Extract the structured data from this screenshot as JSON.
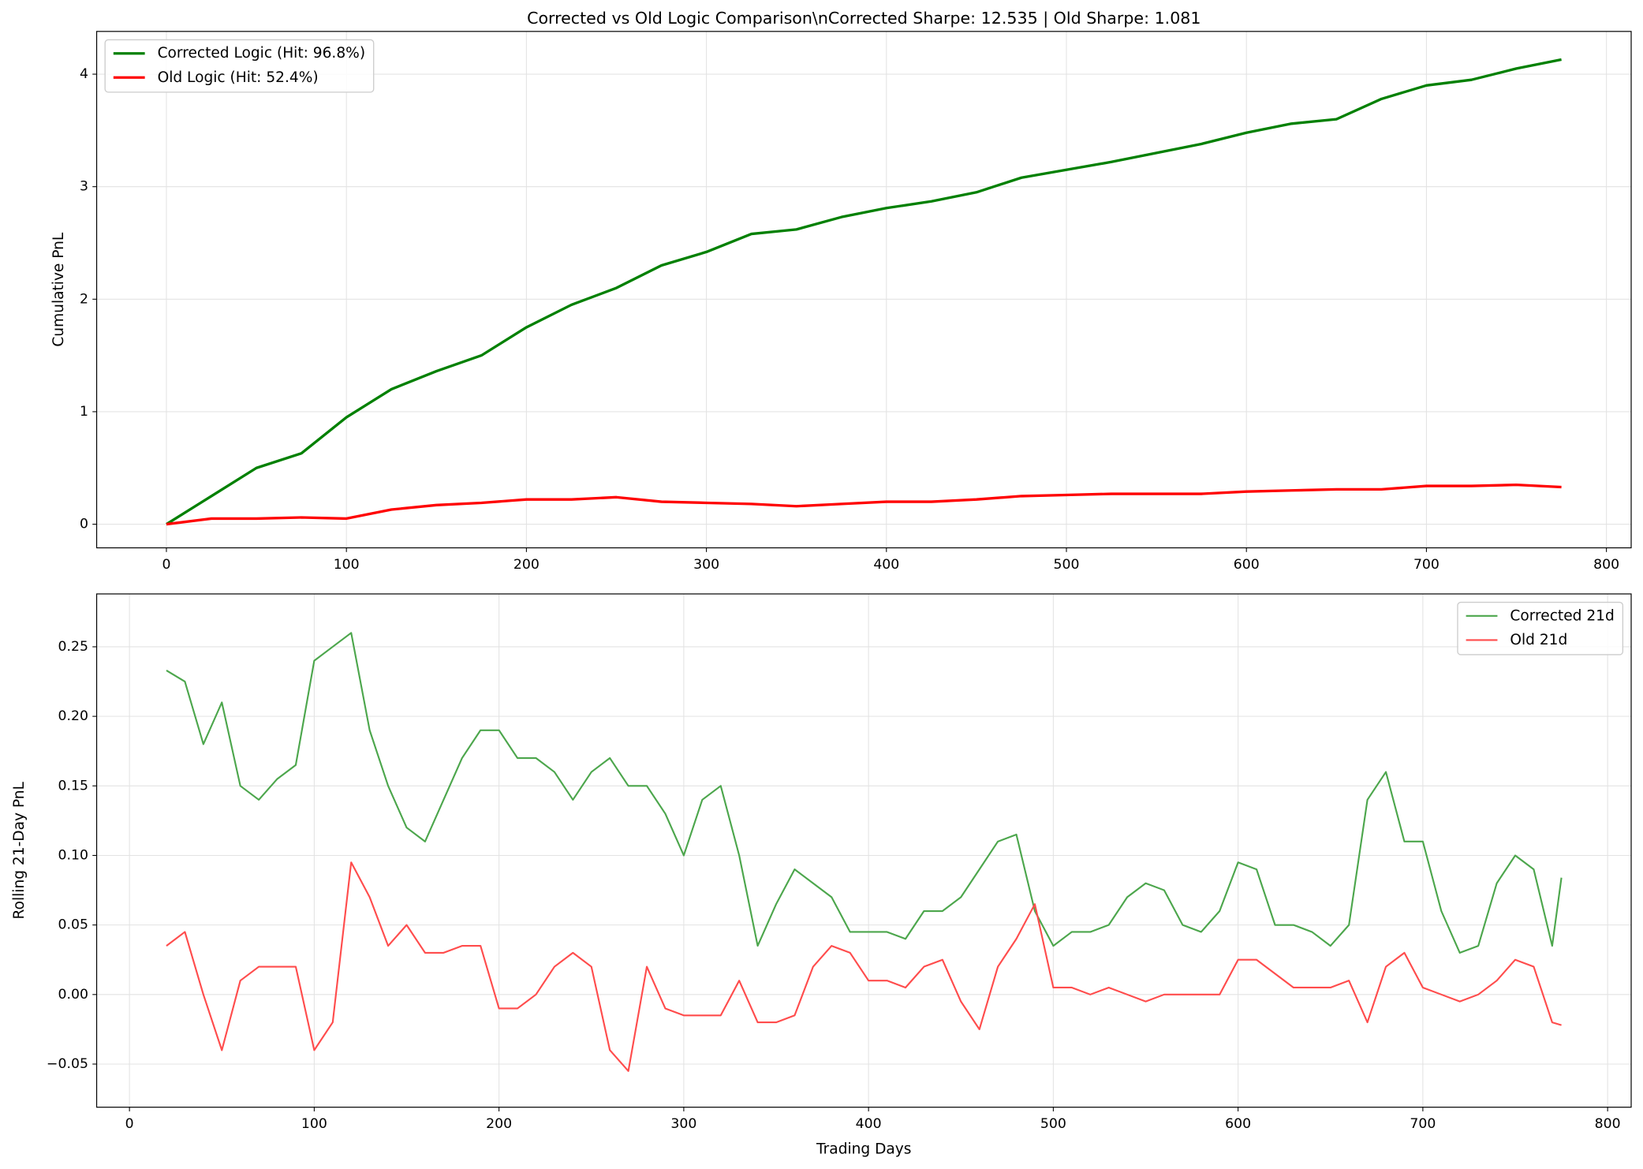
{
  "chart_data": [
    {
      "type": "line",
      "title": "Corrected vs Old Logic Comparison\\nCorrected Sharpe: 12.535 | Old Sharpe: 1.081",
      "ylabel": "Cumulative PnL",
      "grid": true,
      "legend": "upper left",
      "xlim": [
        -38.75,
        813.75
      ],
      "ylim": [
        -0.21,
        4.38
      ],
      "xticks": [
        0,
        100,
        200,
        300,
        400,
        500,
        600,
        700,
        800
      ],
      "yticks": [
        0,
        1,
        2,
        3,
        4
      ],
      "x": [
        0,
        25,
        50,
        75,
        100,
        125,
        150,
        175,
        200,
        225,
        250,
        275,
        300,
        325,
        350,
        375,
        400,
        425,
        450,
        475,
        500,
        525,
        550,
        575,
        600,
        625,
        650,
        675,
        700,
        725,
        750,
        775
      ],
      "series": [
        {
          "name": "Corrected Logic (Hit: 96.8%)",
          "color": "#008000",
          "values": [
            0,
            0.25,
            0.5,
            0.63,
            0.95,
            1.2,
            1.36,
            1.5,
            1.75,
            1.95,
            2.1,
            2.3,
            2.42,
            2.58,
            2.62,
            2.73,
            2.81,
            2.87,
            2.95,
            3.08,
            3.15,
            3.22,
            3.3,
            3.38,
            3.48,
            3.56,
            3.6,
            3.78,
            3.9,
            3.95,
            4.05,
            4.13
          ]
        },
        {
          "name": "Old Logic (Hit: 52.4%)",
          "color": "#ff0000",
          "values": [
            0,
            0.05,
            0.05,
            0.06,
            0.05,
            0.13,
            0.17,
            0.19,
            0.22,
            0.22,
            0.24,
            0.2,
            0.19,
            0.18,
            0.16,
            0.18,
            0.2,
            0.2,
            0.22,
            0.25,
            0.26,
            0.27,
            0.27,
            0.27,
            0.29,
            0.3,
            0.31,
            0.31,
            0.34,
            0.34,
            0.35,
            0.33
          ]
        }
      ]
    },
    {
      "type": "line",
      "xlabel": "Trading Days",
      "ylabel": "Rolling 21-Day PnL",
      "grid": true,
      "legend": "upper right",
      "xlim": [
        -17.75,
        812.75
      ],
      "ylim": [
        -0.081,
        0.288
      ],
      "xticks": [
        0,
        100,
        200,
        300,
        400,
        500,
        600,
        700,
        800
      ],
      "yticks": [
        {
          "value": -0.05,
          "label": "−0.05"
        },
        {
          "value": 0,
          "label": "0.00"
        },
        {
          "value": 0.05,
          "label": "0.05"
        },
        {
          "value": 0.1,
          "label": "0.10"
        },
        {
          "value": 0.15,
          "label": "0.15"
        },
        {
          "value": 0.2,
          "label": "0.20"
        },
        {
          "value": 0.25,
          "label": "0.25"
        }
      ],
      "x": [
        20,
        30,
        40,
        50,
        60,
        70,
        80,
        90,
        100,
        110,
        120,
        130,
        140,
        150,
        160,
        170,
        180,
        190,
        200,
        210,
        220,
        230,
        240,
        250,
        260,
        270,
        280,
        290,
        300,
        310,
        320,
        330,
        340,
        350,
        360,
        370,
        380,
        390,
        400,
        410,
        420,
        430,
        440,
        450,
        460,
        470,
        480,
        490,
        500,
        510,
        520,
        530,
        540,
        550,
        560,
        570,
        580,
        590,
        600,
        610,
        620,
        630,
        640,
        650,
        660,
        670,
        680,
        690,
        700,
        710,
        720,
        730,
        740,
        750,
        760,
        770,
        775
      ],
      "series": [
        {
          "name": "Corrected 21d",
          "color": "#4ca64c",
          "values": [
            0.233,
            0.225,
            0.18,
            0.21,
            0.15,
            0.14,
            0.155,
            0.165,
            0.24,
            0.25,
            0.26,
            0.19,
            0.15,
            0.12,
            0.11,
            0.14,
            0.17,
            0.19,
            0.19,
            0.17,
            0.17,
            0.16,
            0.14,
            0.16,
            0.17,
            0.15,
            0.15,
            0.13,
            0.1,
            0.14,
            0.15,
            0.1,
            0.035,
            0.065,
            0.09,
            0.08,
            0.07,
            0.045,
            0.045,
            0.045,
            0.04,
            0.06,
            0.06,
            0.07,
            0.09,
            0.11,
            0.115,
            0.06,
            0.035,
            0.045,
            0.045,
            0.05,
            0.07,
            0.08,
            0.075,
            0.05,
            0.045,
            0.06,
            0.095,
            0.09,
            0.05,
            0.05,
            0.045,
            0.035,
            0.05,
            0.14,
            0.16,
            0.11,
            0.11,
            0.06,
            0.03,
            0.035,
            0.08,
            0.1,
            0.09,
            0.035,
            0.084
          ]
        },
        {
          "name": "Old 21d",
          "color": "#ff4c4c",
          "values": [
            0.035,
            0.045,
            0,
            -0.04,
            0.01,
            0.02,
            0.02,
            0.02,
            -0.04,
            -0.02,
            0.095,
            0.07,
            0.035,
            0.05,
            0.03,
            0.03,
            0.035,
            0.035,
            -0.01,
            -0.01,
            0,
            0.02,
            0.03,
            0.02,
            -0.04,
            -0.055,
            0.02,
            -0.01,
            -0.015,
            -0.015,
            -0.015,
            0.01,
            -0.02,
            -0.02,
            -0.015,
            0.02,
            0.035,
            0.03,
            0.01,
            0.01,
            0.005,
            0.02,
            0.025,
            -0.005,
            -0.025,
            0.02,
            0.04,
            0.065,
            0.005,
            0.005,
            0,
            0.005,
            0,
            -0.005,
            0,
            0,
            0,
            0,
            0.025,
            0.025,
            0.015,
            0.005,
            0.005,
            0.005,
            0.01,
            -0.02,
            0.02,
            0.03,
            0.005,
            0,
            -0.005,
            0,
            0.01,
            0.025,
            0.02,
            -0.02,
            -0.022
          ]
        }
      ]
    }
  ]
}
